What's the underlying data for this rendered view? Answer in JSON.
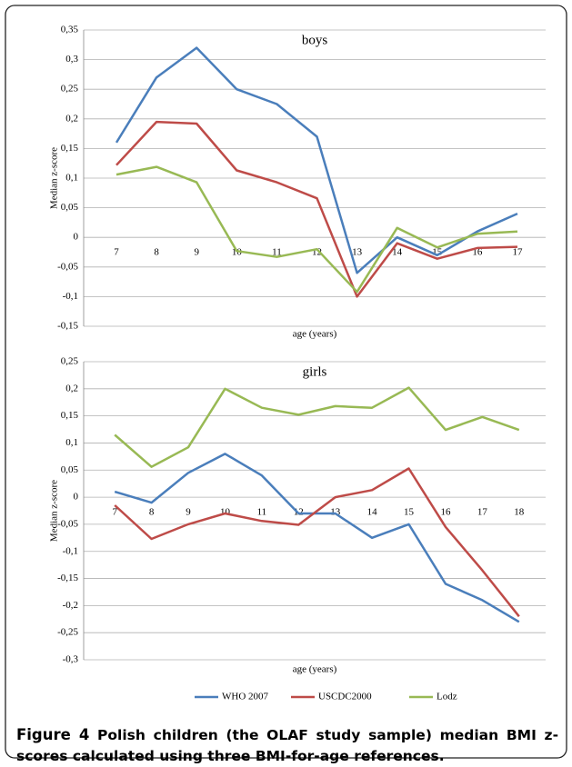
{
  "chart_data": [
    {
      "type": "line",
      "title": "boys",
      "x_label": "age (years)",
      "y_label": "Median z-score",
      "categories": [
        "7",
        "8",
        "9",
        "10",
        "11",
        "12",
        "13",
        "14",
        "15",
        "16",
        "17"
      ],
      "series": [
        {
          "name": "WHO 2007",
          "color": "#4a7ebb",
          "values": [
            0.16,
            0.27,
            0.32,
            0.25,
            0.225,
            0.17,
            -0.06,
            0,
            -0.03,
            0.01,
            0.04
          ]
        },
        {
          "name": "USCDC2000",
          "color": "#be4b48",
          "values": [
            0.122,
            0.195,
            0.192,
            0.113,
            0.093,
            0.066,
            -0.1,
            -0.01,
            -0.036,
            -0.018,
            -0.016
          ]
        },
        {
          "name": "Lodz",
          "color": "#98b954",
          "values": [
            0.106,
            0.119,
            0.093,
            -0.023,
            -0.033,
            -0.02,
            -0.092,
            0.016,
            -0.017,
            0.006,
            0.01
          ]
        }
      ],
      "ylim": [
        -0.15,
        0.35
      ],
      "yticks": [
        {
          "value": -0.15,
          "label": "-0,15"
        },
        {
          "value": -0.1,
          "label": "-0,1"
        },
        {
          "value": -0.05,
          "label": "-0,05"
        },
        0,
        {
          "value": 0.05,
          "label": "0,05"
        },
        {
          "value": 0.1,
          "label": "0,1"
        },
        {
          "value": 0.15,
          "label": "0,15"
        },
        {
          "value": 0.2,
          "label": "0,2"
        },
        {
          "value": 0.25,
          "label": "0,25"
        },
        {
          "value": 0.3,
          "label": "0,3"
        },
        {
          "value": 0.35,
          "label": "0,35"
        }
      ],
      "grid": true
    },
    {
      "type": "line",
      "title": "girls",
      "x_label": "age (years)",
      "y_label": "Median z-score",
      "categories": [
        "7",
        "8",
        "9",
        "10",
        "11",
        "12",
        "13",
        "14",
        "15",
        "16",
        "17",
        "18"
      ],
      "series": [
        {
          "name": "WHO 2007",
          "color": "#4a7ebb",
          "values": [
            0.01,
            -0.01,
            0.045,
            0.08,
            0.04,
            -0.03,
            -0.03,
            -0.075,
            -0.05,
            -0.16,
            -0.19,
            -0.23
          ]
        },
        {
          "name": "USCDC2000",
          "color": "#be4b48",
          "values": [
            -0.015,
            -0.077,
            -0.05,
            -0.03,
            -0.044,
            -0.051,
            0,
            0.013,
            0.053,
            -0.055,
            -0.135,
            -0.22
          ]
        },
        {
          "name": "Lodz",
          "color": "#98b954",
          "values": [
            0.115,
            0.056,
            0.092,
            0.2,
            0.165,
            0.152,
            0.168,
            0.165,
            0.202,
            0.124,
            0.148,
            0.124
          ]
        }
      ],
      "ylim": [
        -0.3,
        0.25
      ],
      "yticks": [
        {
          "value": -0.3,
          "label": "-0,3"
        },
        {
          "value": -0.25,
          "label": "-0,25"
        },
        {
          "value": -0.2,
          "label": "-0,2"
        },
        {
          "value": -0.15,
          "label": "-0,15"
        },
        {
          "value": -0.1,
          "label": "-0,1"
        },
        {
          "value": -0.05,
          "label": "-0,05"
        },
        0,
        {
          "value": 0.05,
          "label": "0,05"
        },
        {
          "value": 0.1,
          "label": "0,1"
        },
        {
          "value": 0.15,
          "label": "0,15"
        },
        {
          "value": 0.2,
          "label": "0,2"
        },
        {
          "value": 0.25,
          "label": "0,25"
        }
      ],
      "grid": true
    }
  ],
  "caption_label": "Figure 4",
  "caption": "Polish children (the OLAF study sample) median BMI z-scores calculated using three BMI-for-age references."
}
